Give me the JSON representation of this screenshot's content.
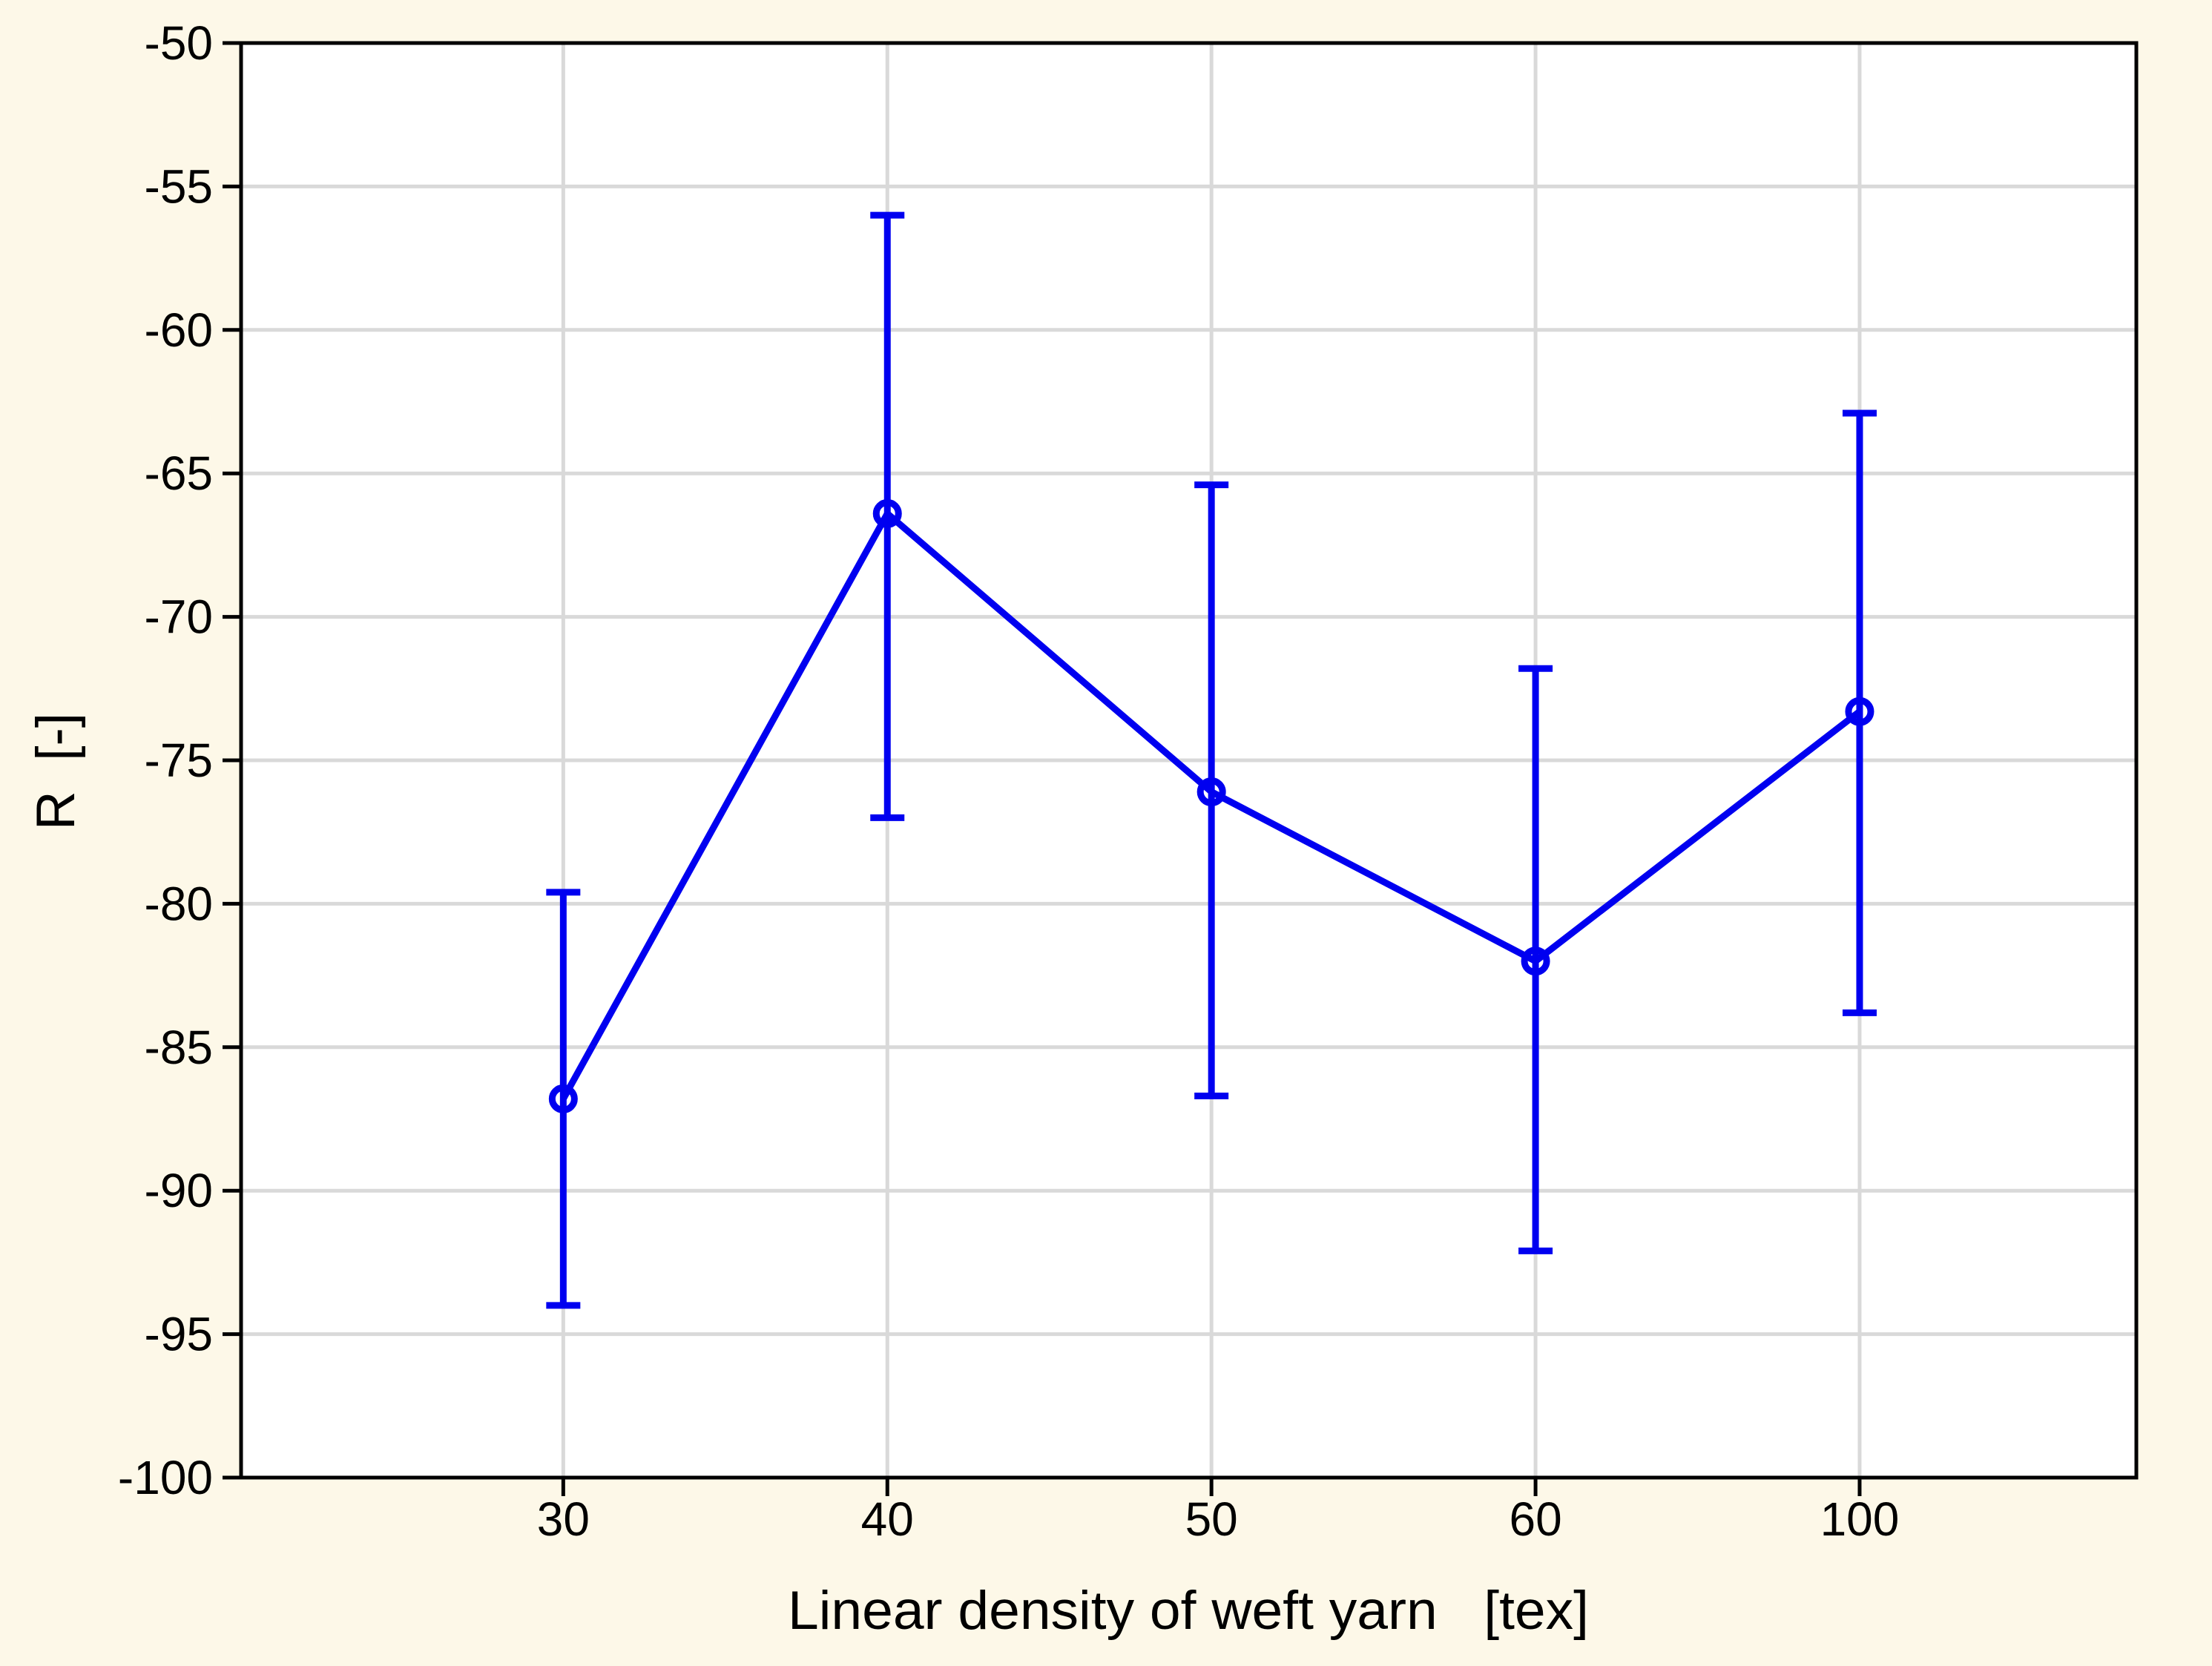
{
  "window": {
    "background_color": "#FDF8E8"
  },
  "chart_data": {
    "type": "line",
    "title": "",
    "xlabel": "Linear density of weft yarn   [tex]",
    "ylabel": "R  [-]",
    "categories": [
      "30",
      "40",
      "50",
      "60",
      "100"
    ],
    "series": [
      {
        "name": "R",
        "means": [
          -86.8,
          -66.4,
          -76.1,
          -82.0,
          -73.3
        ],
        "ci_upper": [
          -79.6,
          -56.0,
          -65.4,
          -71.8,
          -62.9
        ],
        "ci_lower": [
          -94.0,
          -77.0,
          -86.7,
          -92.1,
          -83.8
        ],
        "color": "#0000F0",
        "marker": "open-circle"
      }
    ],
    "ylim": [
      -100,
      -50
    ],
    "ytick_step": 5,
    "ytick_labels": [
      "-50",
      "-55",
      "-60",
      "-65",
      "-70",
      "-75",
      "-80",
      "-85",
      "-90",
      "-95",
      "-100"
    ],
    "grid": true,
    "legend": "none",
    "plot_background": "#FFFFFF",
    "grid_color": "#D9D9D9",
    "axis_color": "#000000"
  }
}
